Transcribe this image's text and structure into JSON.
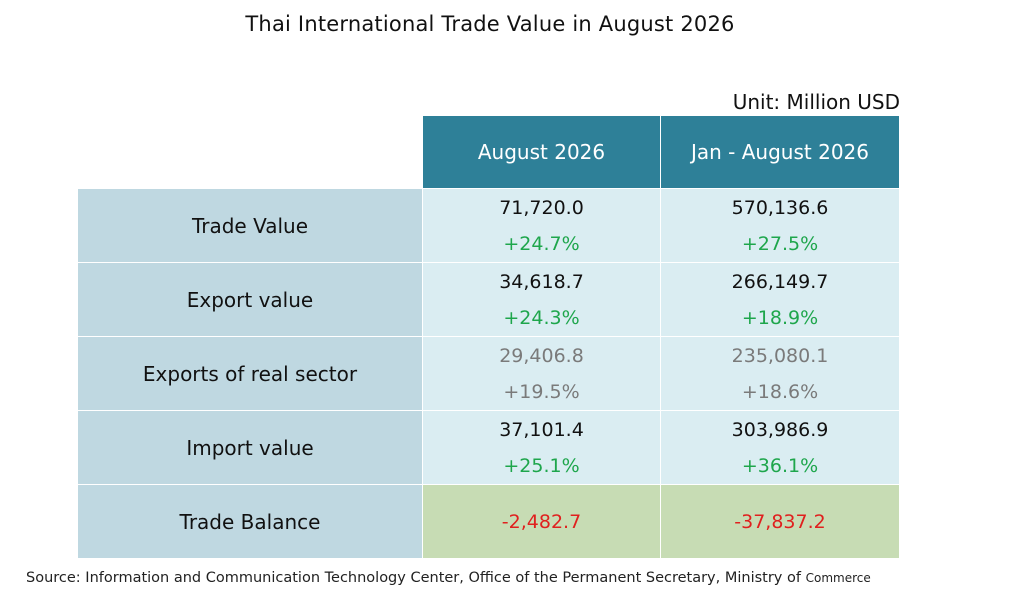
{
  "title": "Thai International Trade Value in August 2026",
  "unit": "Unit: Million USD",
  "columns": [
    "August 2026",
    "Jan - August 2026"
  ],
  "rows": [
    {
      "label": "Trade Value",
      "aug_value": "71,720.0",
      "aug_change": "+24.7%",
      "ytd_value": "570,136.6",
      "ytd_change": "+27.5%"
    },
    {
      "label": "Export value",
      "aug_value": "34,618.7",
      "aug_change": "+24.3%",
      "ytd_value": "266,149.7",
      "ytd_change": "+18.9%"
    },
    {
      "label": "Exports of real sector",
      "aug_value": "29,406.8",
      "aug_change": "+19.5%",
      "ytd_value": "235,080.1",
      "ytd_change": "+18.6%"
    },
    {
      "label": "Import value",
      "aug_value": "37,101.4",
      "aug_change": "+25.1%",
      "ytd_value": "303,986.9",
      "ytd_change": "+36.1%"
    },
    {
      "label": "Trade Balance",
      "aug_value": "-2,482.7",
      "ytd_value": "-37,837.2"
    }
  ],
  "source": "Source: Information and Communication Technology Center, Office of the Permanent Secretary, Ministry of",
  "source_tail": "Commerce",
  "colors": {
    "header_bg": "#2e8098",
    "row_label_bg": "#bfd8e1",
    "value_bg": "#daedf2",
    "balance_bg": "#c7dcb4",
    "positive": "#1ea64c",
    "negative": "#e0201e",
    "muted": "#7a7a7a"
  }
}
